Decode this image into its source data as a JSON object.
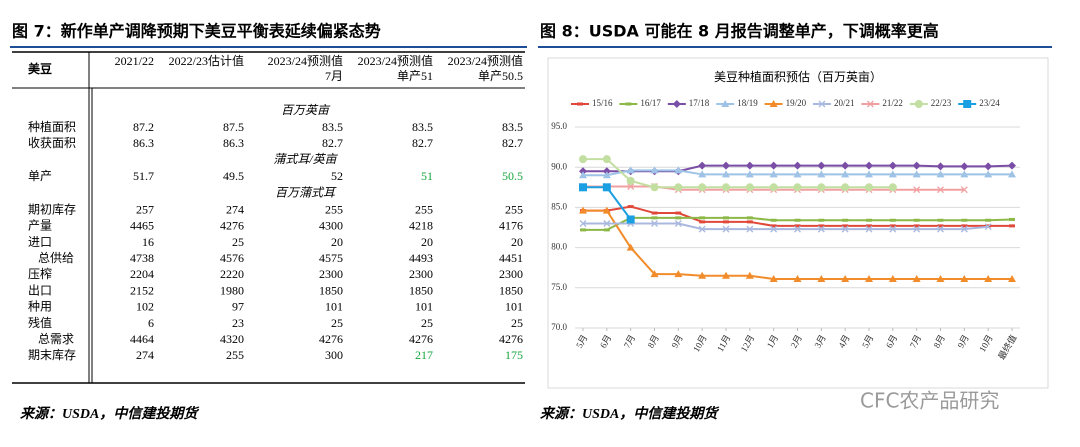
{
  "figure7": {
    "title": "图 7：新作单产调降预期下美豆平衡表延续偏紧态势",
    "source": "来源：USDA，中信建投期货",
    "table": {
      "corner": "美豆",
      "headers": [
        [
          "2021/22"
        ],
        [
          "2022/23估计值"
        ],
        [
          "2023/24预测值",
          "7月"
        ],
        [
          "2023/24预测值",
          "单产51"
        ],
        [
          "2023/24预测值",
          "单产50.5"
        ]
      ],
      "sections": [
        {
          "unit": "百万英亩",
          "rows": [
            {
              "label": "种植面积",
              "cells": [
                "87.2",
                "87.5",
                "83.5",
                "83.5",
                "83.5"
              ]
            },
            {
              "label": "收获面积",
              "cells": [
                "86.3",
                "86.3",
                "82.7",
                "82.7",
                "82.7"
              ]
            }
          ]
        },
        {
          "unit": "蒲式耳/英亩",
          "rows": [
            {
              "label": "单产",
              "cells": [
                "51.7",
                "49.5",
                "52",
                {
                  "text": "51",
                  "color": "#1aa640"
                },
                {
                  "text": "50.5",
                  "color": "#1aa640"
                }
              ]
            }
          ]
        },
        {
          "unit": "百万蒲式耳",
          "rows": [
            {
              "label": "期初库存",
              "cells": [
                "257",
                "274",
                "255",
                "255",
                "255"
              ]
            },
            {
              "label": "产量",
              "cells": [
                "4465",
                "4276",
                "4300",
                "4218",
                "4176"
              ]
            },
            {
              "label": "进口",
              "cells": [
                "16",
                "25",
                "20",
                "20",
                "20"
              ]
            },
            {
              "label": "总供给",
              "indent": true,
              "cells": [
                "4738",
                "4576",
                "4575",
                "4493",
                "4451"
              ]
            },
            {
              "label": "压榨",
              "cells": [
                "2204",
                "2220",
                "2300",
                "2300",
                "2300"
              ]
            },
            {
              "label": "出口",
              "cells": [
                "2152",
                "1980",
                "1850",
                "1850",
                "1850"
              ]
            },
            {
              "label": "种用",
              "cells": [
                "102",
                "97",
                "101",
                "101",
                "101"
              ]
            },
            {
              "label": "残值",
              "cells": [
                "6",
                "23",
                "25",
                "25",
                "25"
              ]
            },
            {
              "label": "总需求",
              "indent": true,
              "cells": [
                "4464",
                "4320",
                "4276",
                "4276",
                "4276"
              ]
            },
            {
              "label": "期末库存",
              "cells": [
                "274",
                "255",
                "300",
                {
                  "text": "217",
                  "color": "#1aa640"
                },
                {
                  "text": "175",
                  "color": "#1aa640"
                }
              ]
            }
          ]
        }
      ]
    }
  },
  "chart_data": {
    "type": "line",
    "figure_title": "图 8：USDA 可能在 8 月报告调整单产，下调概率更高",
    "title": "美豆种植面积预估（百万英亩）",
    "source": "来源：USDA，中信建投期货",
    "watermark": "CFC农产品研究",
    "categories": [
      "5月",
      "6月",
      "7月",
      "8月",
      "9月",
      "10月",
      "11月",
      "12月",
      "1月",
      "2月",
      "3月",
      "4月",
      "5月",
      "6月",
      "7月",
      "8月",
      "9月",
      "10月",
      "最终值"
    ],
    "ylim": [
      70,
      95
    ],
    "yticks": [
      {
        "value": 70,
        "label": "70.0"
      },
      {
        "value": 75,
        "label": "75.0"
      },
      {
        "value": 80,
        "label": "80.0"
      },
      {
        "value": 85,
        "label": "85.0"
      },
      {
        "value": 90,
        "label": "90.0"
      },
      {
        "value": 95,
        "label": "95.0"
      }
    ],
    "grid": true,
    "legend": "top",
    "series": [
      {
        "name": "15/16",
        "color": "#e0483a",
        "marker": "dash",
        "values": [
          84.6,
          84.6,
          85.1,
          84.3,
          84.3,
          83.2,
          83.2,
          83.2,
          82.7,
          82.7,
          82.7,
          82.7,
          82.7,
          82.7,
          82.7,
          82.7,
          82.7,
          82.7,
          82.7
        ]
      },
      {
        "name": "16/17",
        "color": "#8cb847",
        "marker": "dash",
        "values": [
          82.2,
          82.2,
          83.7,
          83.7,
          83.7,
          83.7,
          83.7,
          83.7,
          83.4,
          83.4,
          83.4,
          83.4,
          83.4,
          83.4,
          83.4,
          83.4,
          83.4,
          83.4,
          83.5
        ]
      },
      {
        "name": "17/18",
        "color": "#7a4ea6",
        "marker": "diamond",
        "values": [
          89.5,
          89.5,
          89.5,
          89.5,
          89.5,
          90.2,
          90.2,
          90.2,
          90.2,
          90.2,
          90.2,
          90.2,
          90.2,
          90.2,
          90.2,
          90.1,
          90.1,
          90.1,
          90.2
        ]
      },
      {
        "name": "18/19",
        "color": "#9ec3e6",
        "marker": "triangle",
        "values": [
          89.0,
          89.0,
          89.6,
          89.6,
          89.6,
          89.1,
          89.1,
          89.1,
          89.1,
          89.1,
          89.1,
          89.1,
          89.1,
          89.1,
          89.1,
          89.1,
          89.1,
          89.1,
          89.1
        ]
      },
      {
        "name": "19/20",
        "color": "#f28b2a",
        "marker": "triangle",
        "values": [
          84.6,
          84.6,
          80.0,
          76.7,
          76.7,
          76.5,
          76.5,
          76.5,
          76.1,
          76.1,
          76.1,
          76.1,
          76.1,
          76.1,
          76.1,
          76.1,
          76.1,
          76.1,
          76.1
        ]
      },
      {
        "name": "20/21",
        "color": "#a9b8de",
        "marker": "x",
        "values": [
          83.0,
          83.0,
          83.0,
          83.0,
          83.0,
          82.3,
          82.3,
          82.3,
          82.3,
          82.3,
          82.3,
          82.3,
          82.3,
          82.3,
          82.3,
          82.3,
          82.3,
          82.6,
          null
        ]
      },
      {
        "name": "21/22",
        "color": "#f0a0a0",
        "marker": "x",
        "values": [
          87.6,
          87.6,
          87.6,
          87.6,
          87.2,
          87.2,
          87.2,
          87.2,
          87.2,
          87.2,
          87.2,
          87.2,
          87.2,
          87.2,
          87.2,
          87.2,
          87.2,
          null,
          null
        ]
      },
      {
        "name": "22/23",
        "color": "#c2dea0",
        "marker": "circle",
        "values": [
          91.0,
          91.0,
          88.3,
          87.5,
          87.5,
          87.5,
          87.5,
          87.5,
          87.5,
          87.5,
          87.5,
          87.5,
          87.5,
          87.5,
          null,
          null,
          null,
          null,
          null
        ]
      },
      {
        "name": "23/24",
        "color": "#1a9fe3",
        "marker": "square",
        "values": [
          87.5,
          87.5,
          83.5,
          null,
          null,
          null,
          null,
          null,
          null,
          null,
          null,
          null,
          null,
          null,
          null,
          null,
          null,
          null,
          null
        ]
      }
    ]
  }
}
